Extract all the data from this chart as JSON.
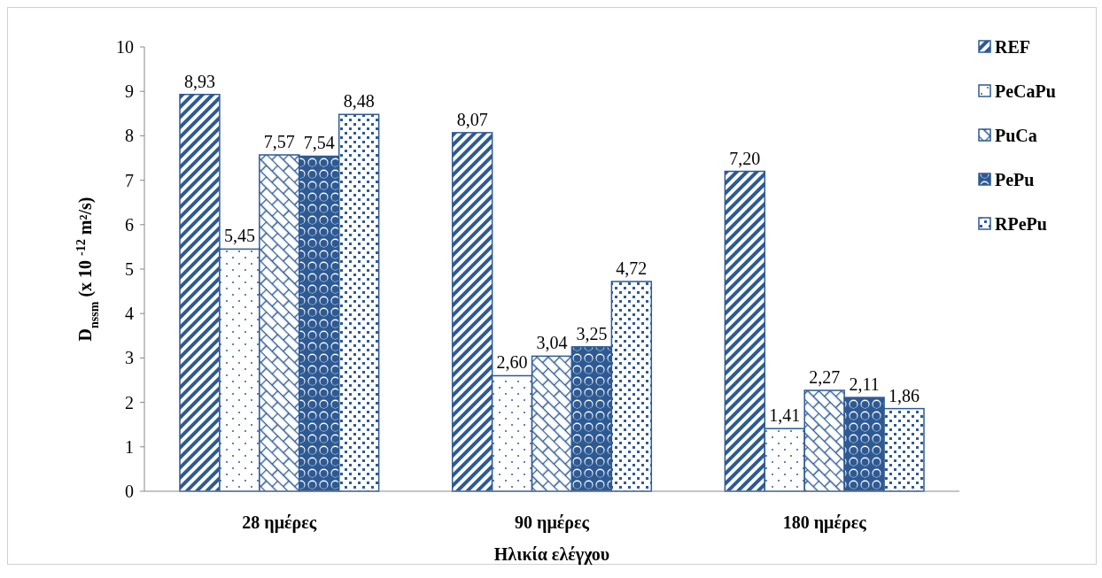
{
  "chart_data": {
    "type": "bar",
    "xlabel": "Ηλικία ελέγχου",
    "ylabel": "D$_{nssm}$ (x 10 $^{-12}$ m²/s)",
    "categories": [
      "28 ημέρες",
      "90 ημέρες",
      "180 ημέρες"
    ],
    "ylim": [
      0,
      10
    ],
    "yticks": [
      0,
      1,
      2,
      3,
      4,
      5,
      6,
      7,
      8,
      9,
      10
    ],
    "legend": "right",
    "grid": false,
    "series": [
      {
        "name": "REF",
        "color": "#2e5a94",
        "values": [
          8.93,
          8.07,
          7.2
        ],
        "value_labels": [
          "8,93",
          "8,07",
          "7,20"
        ]
      },
      {
        "name": "PeCaPu",
        "color": "#2e5a94",
        "values": [
          5.45,
          2.6,
          1.41
        ],
        "value_labels": [
          "5,45",
          "2,60",
          "1,41"
        ]
      },
      {
        "name": "PuCa",
        "color": "#2e5a94",
        "values": [
          7.57,
          3.04,
          2.27
        ],
        "value_labels": [
          "7,57",
          "3,04",
          "2,27"
        ]
      },
      {
        "name": "PePu",
        "color": "#2e5a94",
        "values": [
          7.54,
          3.25,
          2.11
        ],
        "value_labels": [
          "7,54",
          "3,25",
          "2,11"
        ]
      },
      {
        "name": "RPePu",
        "color": "#2e5a94",
        "values": [
          8.48,
          4.72,
          1.86
        ],
        "value_labels": [
          "8,48",
          "4,72",
          "1,86"
        ]
      }
    ]
  }
}
